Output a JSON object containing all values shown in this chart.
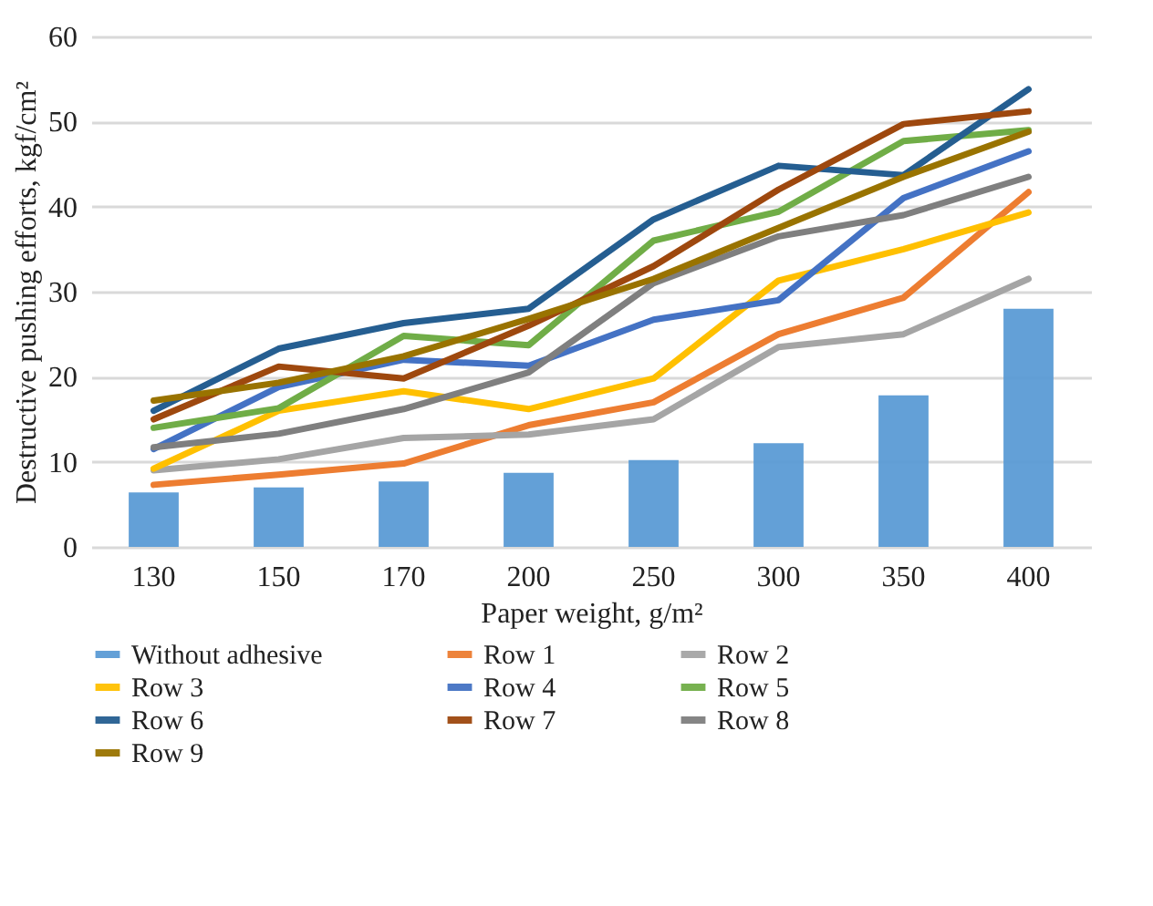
{
  "chart_data": {
    "type": "line",
    "xlabel": "Paper weight, g/m²",
    "ylabel": "Destructive pushing efforts, kgf/cm²",
    "categories": [
      "130",
      "150",
      "170",
      "200",
      "250",
      "300",
      "350",
      "400"
    ],
    "ylim": [
      0,
      60
    ],
    "yticks": [
      0,
      10,
      20,
      30,
      40,
      50,
      60
    ],
    "grid": "y",
    "legend": "bottom",
    "marker": "none",
    "series": [
      {
        "name": "Without adhesive",
        "type": "bar",
        "color": "#5b9bd5",
        "values": [
          6.4,
          7.0,
          7.7,
          8.7,
          10.2,
          12.2,
          17.8,
          28.0
        ]
      },
      {
        "name": "Row 1",
        "color": "#ed7d31",
        "values": [
          7.3,
          8.5,
          9.8,
          14.3,
          17.0,
          25.0,
          29.3,
          41.7
        ]
      },
      {
        "name": "Row 2",
        "color": "#a5a5a5",
        "values": [
          9.0,
          10.3,
          12.8,
          13.2,
          15.0,
          23.5,
          25.0,
          31.5
        ]
      },
      {
        "name": "Row  3",
        "color": "#ffc000",
        "values": [
          9.2,
          16.0,
          18.3,
          16.2,
          19.8,
          31.3,
          35.0,
          39.3
        ]
      },
      {
        "name": "Row 4",
        "color": "#4472c4",
        "values": [
          11.5,
          18.8,
          22.0,
          21.3,
          26.7,
          29.0,
          41.0,
          46.5
        ]
      },
      {
        "name": "Row 5",
        "color": "#70ad47",
        "values": [
          14.0,
          16.3,
          24.8,
          23.7,
          36.0,
          39.4,
          47.7,
          49.0
        ]
      },
      {
        "name": "Row  6",
        "color": "#255e91",
        "values": [
          16.0,
          23.3,
          26.3,
          28.0,
          38.5,
          44.8,
          43.7,
          53.8
        ]
      },
      {
        "name": "Row 7",
        "color": "#9e480e",
        "values": [
          15.0,
          21.2,
          19.8,
          26.0,
          33.0,
          42.0,
          49.7,
          51.2
        ]
      },
      {
        "name": "Row 8",
        "color": "#7f7f7f",
        "values": [
          11.7,
          13.3,
          16.2,
          20.5,
          31.0,
          36.5,
          39.0,
          43.5
        ]
      },
      {
        "name": "Row 9",
        "color": "#997300",
        "values": [
          17.2,
          19.3,
          22.4,
          26.8,
          31.5,
          37.5,
          43.5,
          48.8
        ]
      }
    ]
  }
}
